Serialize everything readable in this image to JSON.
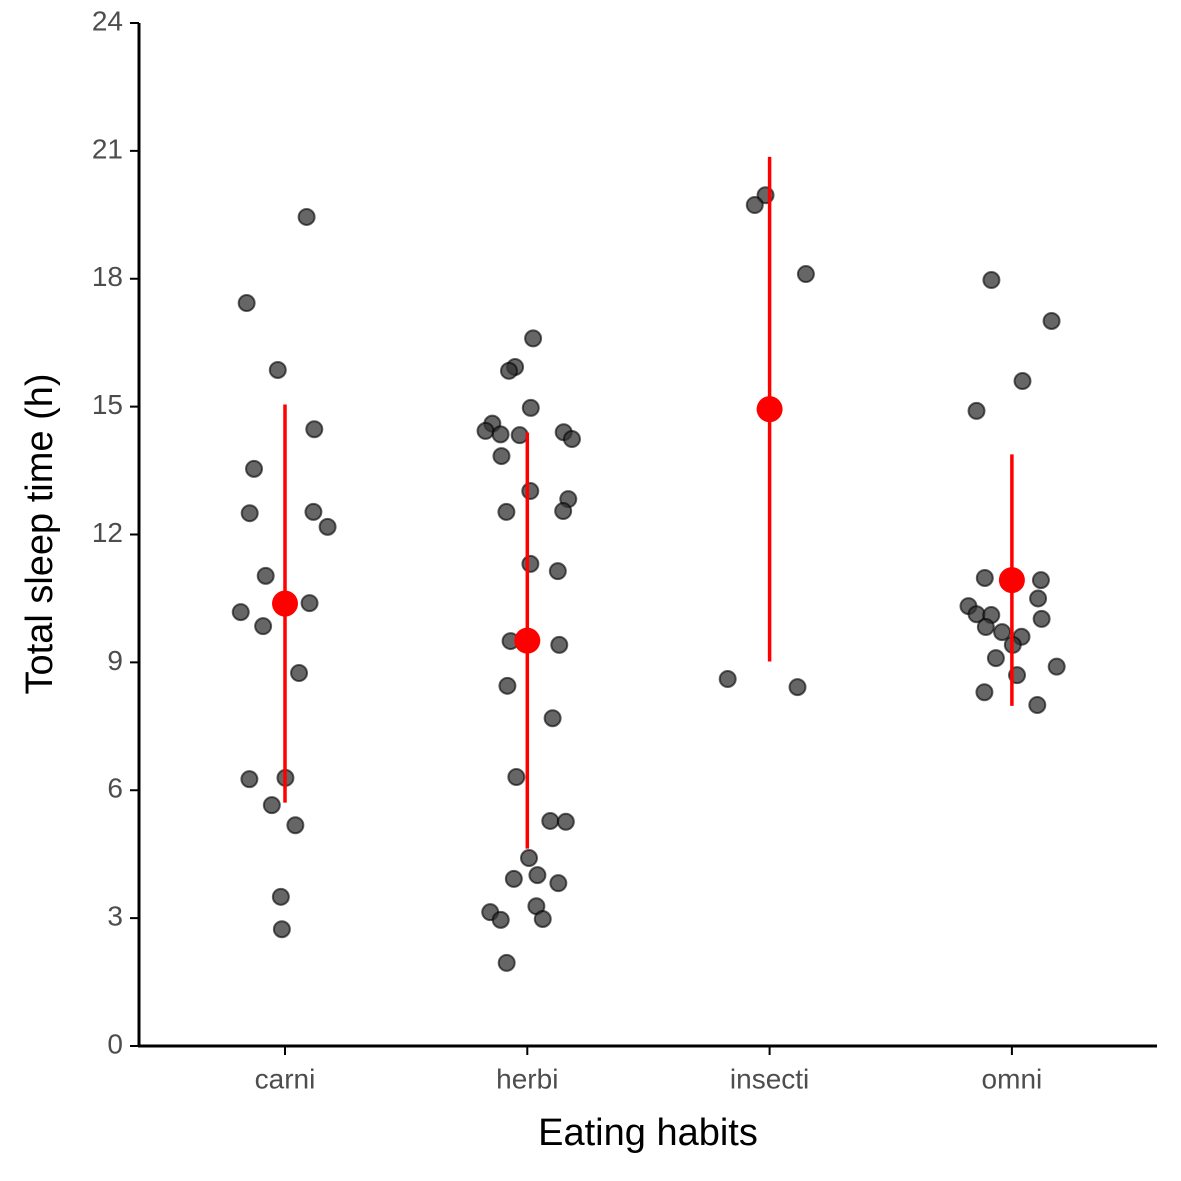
{
  "chart_data": {
    "type": "strip",
    "xlabel": "Eating habits",
    "ylabel": "Total sleep time (h)",
    "categories": [
      "carni",
      "herbi",
      "insecti",
      "omni"
    ],
    "points": [
      [
        19.45,
        17.43,
        15.86,
        14.47,
        13.54,
        12.53,
        12.5,
        12.18,
        11.03,
        10.39,
        10.18,
        9.85,
        8.75,
        6.29,
        6.26,
        5.65,
        5.18,
        3.5,
        2.74
      ],
      [
        16.6,
        15.93,
        15.84,
        14.97,
        14.6,
        14.43,
        14.4,
        14.35,
        14.33,
        14.24,
        13.84,
        13.02,
        12.83,
        12.55,
        12.53,
        11.31,
        11.14,
        9.5,
        9.41,
        8.45,
        7.69,
        6.31,
        5.28,
        5.26,
        4.41,
        4.01,
        3.92,
        3.82,
        3.28,
        3.14,
        2.98,
        2.96,
        1.95
      ],
      [
        19.96,
        19.73,
        18.11,
        8.61,
        8.42
      ],
      [
        17.97,
        17.01,
        15.6,
        14.9,
        10.98,
        10.93,
        10.5,
        10.32,
        10.13,
        10.11,
        10.02,
        9.83,
        9.71,
        9.6,
        9.41,
        9.1,
        8.9,
        8.7,
        8.3,
        8.0
      ]
    ],
    "point_color": "#333333",
    "mean": [
      10.38,
      9.51,
      14.94,
      10.93
    ],
    "sd": [
      4.67,
      4.88,
      5.92,
      2.95
    ],
    "summary_color": "#ff0000",
    "ylim": [
      0,
      24
    ],
    "yticks": [
      0,
      3,
      6,
      9,
      12,
      15,
      18,
      21,
      24
    ],
    "grid": false
  }
}
